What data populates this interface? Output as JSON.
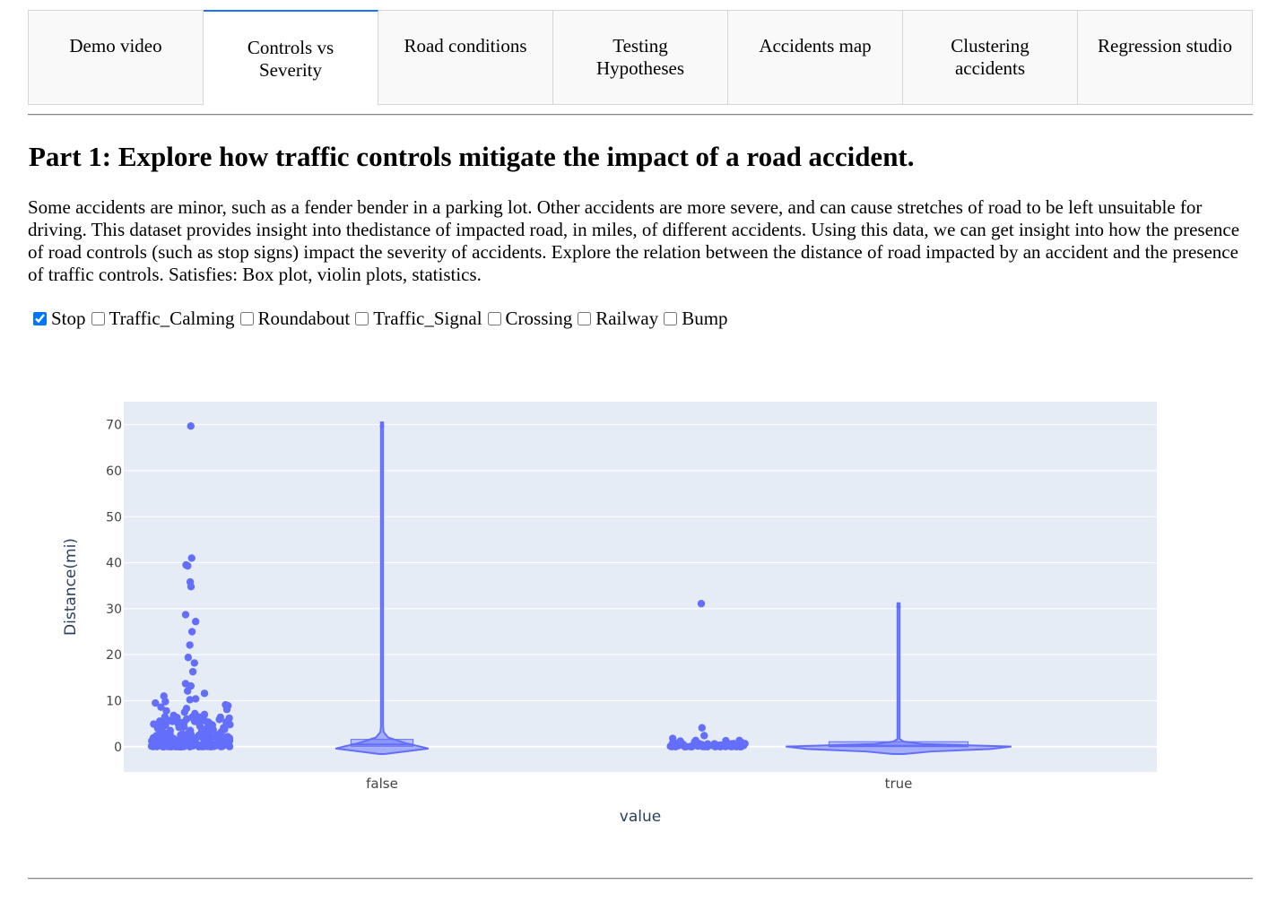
{
  "tabs": [
    {
      "label": "Demo video",
      "selected": false
    },
    {
      "label": "Controls vs Severity",
      "selected": true
    },
    {
      "label": "Road conditions",
      "selected": false
    },
    {
      "label": "Testing Hypotheses",
      "selected": false
    },
    {
      "label": "Accidents map",
      "selected": false
    },
    {
      "label": "Clustering accidents",
      "selected": false
    },
    {
      "label": "Regression studio",
      "selected": false
    }
  ],
  "heading": "Part 1: Explore how traffic controls mitigate the impact of a road accident.",
  "description": "Some accidents are minor, such as a fender bender in a parking lot. Other accidents are more severe, and can cause stretches of road to be left unsuitable for driving. This dataset provides insight into thedistance of impacted road, in miles, of different accidents. Using this data, we can get insight into how the presence of road controls (such as stop signs) impact the severity of accidents. Explore the relation between the distance of road impacted by an accident and the presence of traffic controls. Satisfies: Box plot, violin plots, statistics.",
  "checklist": [
    {
      "label": "Stop",
      "checked": true
    },
    {
      "label": "Traffic_Calming",
      "checked": false
    },
    {
      "label": "Roundabout",
      "checked": false
    },
    {
      "label": "Traffic_Signal",
      "checked": false
    },
    {
      "label": "Crossing",
      "checked": false
    },
    {
      "label": "Railway",
      "checked": false
    },
    {
      "label": "Bump",
      "checked": false
    }
  ],
  "colors": {
    "accent": "#1975FA",
    "marker": "#636EFA",
    "plot_bg": "#E5ECF6",
    "axis_text": "#2A3F5F"
  },
  "chart_data": {
    "type": "violin",
    "xlabel": "value",
    "ylabel": "Distance(mi)",
    "ylim": [
      -5.5,
      75
    ],
    "yticks": [
      0,
      10,
      20,
      30,
      40,
      50,
      60,
      70
    ],
    "grid": true,
    "categories": [
      "false",
      "true"
    ],
    "groups": [
      {
        "category": "false",
        "max": 70.5,
        "median": 0.5,
        "q1": 0.1,
        "q3": 1.0,
        "points": [
          69.7,
          41,
          39.5,
          39.3,
          35.8,
          34.8,
          28.7,
          27.2,
          25,
          22.1,
          19.4,
          18.2,
          16.3,
          13.7,
          13.2,
          12.1,
          11.6,
          11,
          10.4,
          10.2,
          9.8,
          9.5,
          9.1,
          8.9,
          8.6,
          8.3,
          8.1,
          7.8,
          7.5,
          7.2,
          7,
          6.8,
          6.5,
          6.2,
          6,
          5.7,
          5.5,
          5.2,
          5,
          4.7,
          4.5,
          4.2,
          4,
          3.8,
          3.5,
          3.2,
          3,
          2.7,
          2.5,
          2.2,
          2,
          1.8,
          1.5,
          1.2,
          1,
          0.8,
          0.5,
          0.3,
          0.1,
          0
        ]
      },
      {
        "category": "true",
        "max": 31.2,
        "median": 0.2,
        "q1": 0.0,
        "q3": 0.5,
        "points": [
          31.1,
          4.1,
          2.4,
          1.8,
          1.3,
          1.0,
          0.9,
          0.7,
          0.6,
          0.5,
          0.4,
          0.3,
          0.25,
          0.2,
          0.15,
          0.1,
          0.05,
          0
        ]
      }
    ]
  }
}
